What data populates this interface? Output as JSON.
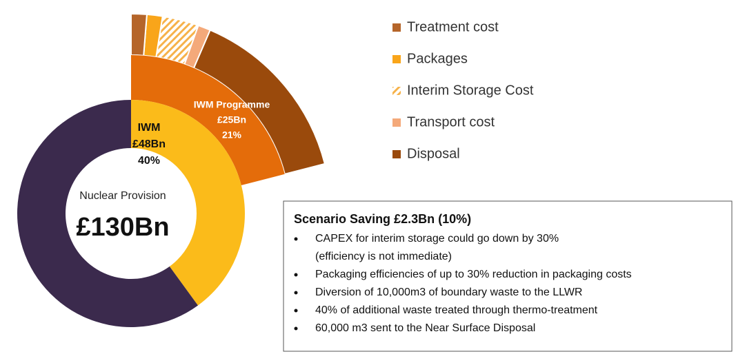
{
  "chart_data": {
    "type": "sunburst",
    "center_label": "Nuclear Provision",
    "center_value": "£130Bn",
    "inner": {
      "name": "IWM",
      "amount": "£48Bn",
      "value": 40,
      "value_label": "40%",
      "color": "#fbbb1a",
      "rest_color": "#3b2a4d"
    },
    "programme": {
      "name": "IWM Programme",
      "amount": "£25Bn",
      "value": 21,
      "value_label": "21%",
      "color": "#e46c0a"
    },
    "series": [
      {
        "name": "Treatment cost",
        "color": "#b5652a",
        "value": 1.5
      },
      {
        "name": "Packages",
        "color": "#f9a51a",
        "value": 1.5
      },
      {
        "name": "Interim Storage Cost",
        "color": "hatch",
        "value": 3.5
      },
      {
        "name": "Transport cost",
        "color": "#f4a97a",
        "value": 1.2
      },
      {
        "name": "Disposal",
        "color": "#9a4a0c",
        "value": 17.3
      }
    ],
    "box": {
      "title": "Scenario Saving  £2.3Bn (10%)",
      "bullets": [
        [
          "CAPEX for interim storage could go down by 30%",
          "(efficiency is not immediate)"
        ],
        [
          "Packaging efficiencies of up to 30% reduction in packaging costs"
        ],
        [
          "Diversion of 10,000m3 of boundary waste to the LLWR"
        ],
        [
          "40% of additional waste treated through thermo-treatment"
        ],
        [
          "60,000 m3 sent to the Near Surface Disposal"
        ]
      ]
    }
  }
}
